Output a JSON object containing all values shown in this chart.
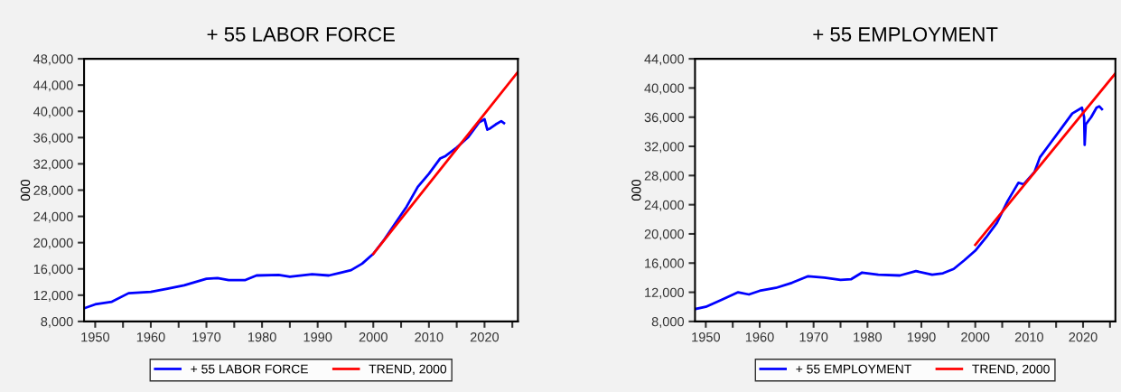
{
  "chart_data": [
    {
      "type": "line",
      "title": "+ 55 LABOR FORCE",
      "ylabel": "000",
      "legend": "bottom",
      "grid": false,
      "line_style": "solid",
      "marker": "none",
      "xlim": [
        1948,
        2026
      ],
      "xticks": [
        {
          "value": 1950,
          "label": "1950"
        },
        {
          "value": 1955,
          "label": null
        },
        {
          "value": 1960,
          "label": "1960"
        },
        {
          "value": 1965,
          "label": null
        },
        {
          "value": 1970,
          "label": "1970"
        },
        {
          "value": 1975,
          "label": null
        },
        {
          "value": 1980,
          "label": "1980"
        },
        {
          "value": 1985,
          "label": null
        },
        {
          "value": 1990,
          "label": "1990"
        },
        {
          "value": 1995,
          "label": null
        },
        {
          "value": 2000,
          "label": "2000"
        },
        {
          "value": 2005,
          "label": null
        },
        {
          "value": 2010,
          "label": "2010"
        },
        {
          "value": 2015,
          "label": null
        },
        {
          "value": 2020,
          "label": "2020"
        },
        {
          "value": 2025,
          "label": null
        }
      ],
      "ylim": [
        8000,
        48000
      ],
      "yticks": [
        {
          "value": 8000,
          "label": "8,000"
        },
        {
          "value": 12000,
          "label": "12,000"
        },
        {
          "value": 16000,
          "label": "16,000"
        },
        {
          "value": 20000,
          "label": "20,000"
        },
        {
          "value": 24000,
          "label": "24,000"
        },
        {
          "value": 28000,
          "label": "28,000"
        },
        {
          "value": 32000,
          "label": "32,000"
        },
        {
          "value": 36000,
          "label": "36,000"
        },
        {
          "value": 40000,
          "label": "40,000"
        },
        {
          "value": 44000,
          "label": "44,000"
        },
        {
          "value": 48000,
          "label": "48,000"
        }
      ],
      "series": [
        {
          "name": "+ 55 LABOR FORCE",
          "color": "#0000ff",
          "x": [
            1948,
            1950,
            1953,
            1956,
            1960,
            1963,
            1966,
            1970,
            1972,
            1974,
            1977,
            1979,
            1983,
            1985,
            1989,
            1992,
            1994,
            1996,
            1998,
            2000,
            2002,
            2004,
            2006,
            2008,
            2010,
            2012,
            2013,
            2015,
            2017,
            2019,
            2020,
            2020.5,
            2021,
            2022,
            2023,
            2023.5
          ],
          "values": [
            10000,
            10600,
            11000,
            12300,
            12500,
            13000,
            13500,
            14500,
            14600,
            14300,
            14300,
            15000,
            15100,
            14800,
            15200,
            15000,
            15400,
            15800,
            16800,
            18300,
            20500,
            23000,
            25500,
            28500,
            30500,
            32800,
            33200,
            34500,
            36000,
            38300,
            38800,
            37200,
            37400,
            38000,
            38500,
            38200
          ]
        },
        {
          "name": "TREND, 2000",
          "color": "#ff0000",
          "x": [
            2000,
            2026
          ],
          "values": [
            18300,
            46000
          ]
        }
      ]
    },
    {
      "type": "line",
      "title": "+ 55 EMPLOYMENT",
      "ylabel": "000",
      "legend": "bottom",
      "grid": false,
      "line_style": "solid",
      "marker": "none",
      "xlim": [
        1948,
        2026
      ],
      "xticks": [
        {
          "value": 1950,
          "label": "1950"
        },
        {
          "value": 1955,
          "label": null
        },
        {
          "value": 1960,
          "label": "1960"
        },
        {
          "value": 1965,
          "label": null
        },
        {
          "value": 1970,
          "label": "1970"
        },
        {
          "value": 1975,
          "label": null
        },
        {
          "value": 1980,
          "label": "1980"
        },
        {
          "value": 1985,
          "label": null
        },
        {
          "value": 1990,
          "label": "1990"
        },
        {
          "value": 1995,
          "label": null
        },
        {
          "value": 2000,
          "label": "2000"
        },
        {
          "value": 2005,
          "label": null
        },
        {
          "value": 2010,
          "label": "2010"
        },
        {
          "value": 2015,
          "label": null
        },
        {
          "value": 2020,
          "label": "2020"
        },
        {
          "value": 2025,
          "label": null
        }
      ],
      "ylim": [
        8000,
        44000
      ],
      "yticks": [
        {
          "value": 8000,
          "label": "8,000"
        },
        {
          "value": 12000,
          "label": "12,000"
        },
        {
          "value": 16000,
          "label": "16,000"
        },
        {
          "value": 20000,
          "label": "20,000"
        },
        {
          "value": 24000,
          "label": "24,000"
        },
        {
          "value": 28000,
          "label": "28,000"
        },
        {
          "value": 32000,
          "label": "32,000"
        },
        {
          "value": 36000,
          "label": "36,000"
        },
        {
          "value": 40000,
          "label": "40,000"
        },
        {
          "value": 44000,
          "label": "44,000"
        }
      ],
      "series": [
        {
          "name": "+ 55 EMPLOYMENT",
          "color": "#0000ff",
          "x": [
            1948,
            1950,
            1953,
            1956,
            1958,
            1960,
            1963,
            1966,
            1969,
            1972,
            1975,
            1977,
            1979,
            1982,
            1986,
            1989,
            1992,
            1994,
            1996,
            1998,
            2000,
            2002,
            2004,
            2006,
            2008,
            2009,
            2011,
            2012,
            2014,
            2016,
            2018,
            2019.8,
            2020.2,
            2020.3,
            2020.5,
            2021.5,
            2022.5,
            2023,
            2023.5
          ],
          "values": [
            9700,
            10000,
            11000,
            12000,
            11700,
            12200,
            12600,
            13300,
            14200,
            14000,
            13700,
            13800,
            14700,
            14400,
            14300,
            14900,
            14400,
            14600,
            15200,
            16400,
            17700,
            19500,
            21500,
            24500,
            27000,
            26800,
            28500,
            30500,
            32500,
            34500,
            36500,
            37300,
            36000,
            32200,
            35000,
            36000,
            37300,
            37500,
            37100
          ]
        },
        {
          "name": "TREND, 2000",
          "color": "#ff0000",
          "x": [
            2000,
            2026
          ],
          "values": [
            18500,
            42000
          ]
        }
      ]
    }
  ]
}
